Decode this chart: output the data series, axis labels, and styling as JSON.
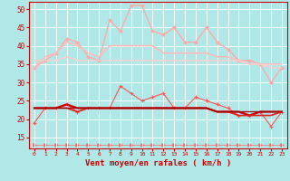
{
  "x": [
    0,
    1,
    2,
    3,
    4,
    5,
    6,
    7,
    8,
    9,
    10,
    11,
    12,
    13,
    14,
    15,
    16,
    17,
    18,
    19,
    20,
    21,
    22,
    23
  ],
  "background_color": "#b0e8e8",
  "grid_color": "#ffffff",
  "xlabel": "Vent moyen/en rafales ( km/h )",
  "xlabel_color": "#cc0000",
  "tick_color": "#cc0000",
  "ylim": [
    12,
    52
  ],
  "yticks": [
    15,
    20,
    25,
    30,
    35,
    40,
    45,
    50
  ],
  "lines": [
    {
      "values": [
        34,
        36,
        38,
        42,
        41,
        37,
        36,
        47,
        44,
        51,
        51,
        44,
        43,
        45,
        41,
        41,
        45,
        41,
        39,
        36,
        36,
        35,
        30,
        34
      ],
      "color": "#ffaaaa",
      "marker": "D",
      "markersize": 1.8,
      "linewidth": 1.0,
      "zorder": 2
    },
    {
      "values": [
        34,
        37,
        38,
        41,
        40,
        38,
        37,
        40,
        40,
        40,
        40,
        40,
        38,
        38,
        38,
        38,
        38,
        37,
        37,
        36,
        35,
        35,
        35,
        35
      ],
      "color": "#ffbbbb",
      "marker": null,
      "markersize": 2,
      "linewidth": 1.2,
      "zorder": 2
    },
    {
      "values": [
        36,
        36,
        36,
        37,
        36,
        36,
        36,
        36,
        36,
        36,
        36,
        36,
        36,
        36,
        36,
        36,
        36,
        36,
        36,
        36,
        35,
        35,
        34,
        34
      ],
      "color": "#ffcccc",
      "marker": null,
      "markersize": 2,
      "linewidth": 1.0,
      "zorder": 2
    },
    {
      "values": [
        19,
        23,
        23,
        24,
        22,
        23,
        23,
        23,
        29,
        27,
        25,
        26,
        27,
        23,
        23,
        26,
        25,
        24,
        23,
        21,
        21,
        22,
        18,
        22
      ],
      "color": "#ff5555",
      "marker": "+",
      "markersize": 3,
      "linewidth": 0.8,
      "zorder": 3
    },
    {
      "values": [
        23,
        23,
        23,
        24,
        23,
        23,
        23,
        23,
        23,
        23,
        23,
        23,
        23,
        23,
        23,
        23,
        23,
        22,
        22,
        22,
        21,
        22,
        22,
        22
      ],
      "color": "#cc0000",
      "marker": null,
      "markersize": 2,
      "linewidth": 1.6,
      "zorder": 4
    },
    {
      "values": [
        23,
        23,
        23,
        23,
        22,
        23,
        23,
        23,
        23,
        23,
        23,
        23,
        23,
        23,
        23,
        23,
        23,
        22,
        22,
        21,
        21,
        21,
        21,
        22
      ],
      "color": "#dd2222",
      "marker": null,
      "markersize": 2,
      "linewidth": 1.2,
      "zorder": 4
    },
    {
      "values": [
        23,
        23,
        23,
        23,
        23,
        23,
        23,
        23,
        23,
        23,
        23,
        23,
        23,
        23,
        23,
        23,
        23,
        22,
        22,
        22,
        22,
        22,
        22,
        22
      ],
      "color": "#990000",
      "marker": null,
      "markersize": 2,
      "linewidth": 0.9,
      "zorder": 4
    },
    {
      "values": [
        13,
        13,
        13,
        13,
        13,
        13,
        13,
        13,
        13,
        13,
        13,
        13,
        13,
        13,
        13,
        13,
        13,
        13,
        13,
        13,
        13,
        13,
        13,
        13
      ],
      "color": "#ff6666",
      "marker": ">",
      "markersize": 2.5,
      "linewidth": 0.5,
      "zorder": 1
    }
  ]
}
